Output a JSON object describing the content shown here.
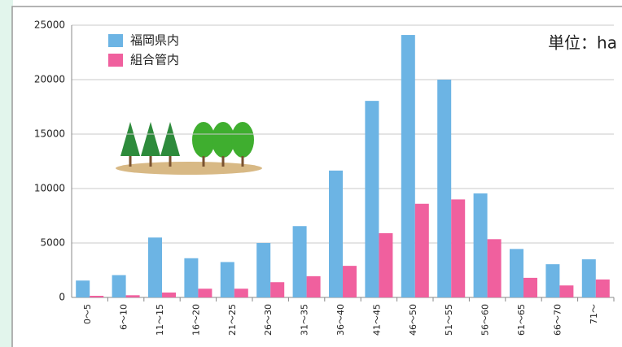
{
  "chart_data": {
    "type": "bar",
    "annotation": "単位：ha",
    "categories": [
      "0～5",
      "6～10",
      "11～15",
      "16～20",
      "21～25",
      "26～30",
      "31～35",
      "36～40",
      "41～45",
      "46～50",
      "51～55",
      "56～60",
      "61～65",
      "66～70",
      "71～"
    ],
    "series": [
      {
        "name": "福岡県内",
        "color": "#6cb4e4",
        "values": [
          1550,
          2050,
          5500,
          3600,
          3250,
          5000,
          6550,
          11650,
          18050,
          24100,
          20000,
          9550,
          4450,
          3050,
          3500
        ]
      },
      {
        "name": "組合管内",
        "color": "#f0609e",
        "values": [
          150,
          200,
          450,
          800,
          800,
          1400,
          1950,
          2900,
          5900,
          8600,
          9000,
          5350,
          1800,
          1100,
          1650
        ]
      }
    ],
    "ylim": [
      0,
      25000
    ],
    "yticks": [
      0,
      5000,
      10000,
      15000,
      20000,
      25000
    ],
    "grid": true
  }
}
